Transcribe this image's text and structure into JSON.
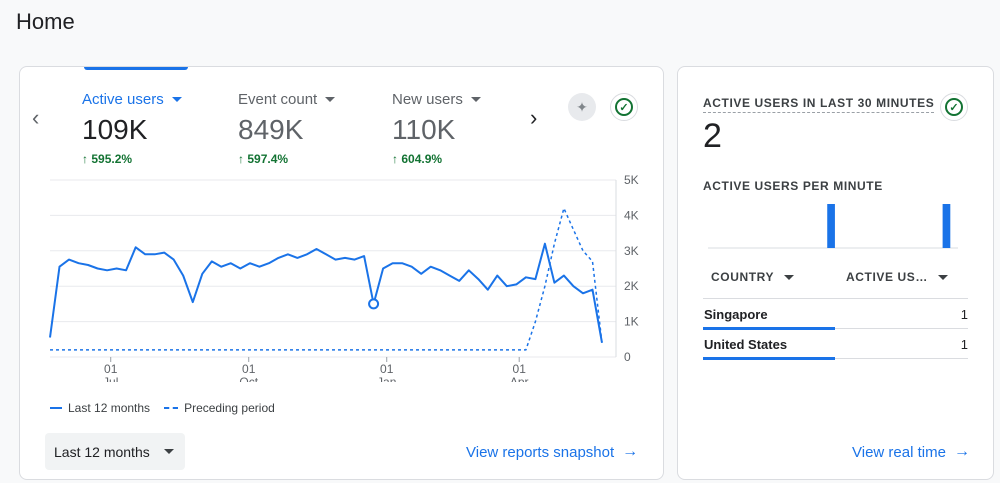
{
  "page": {
    "title": "Home"
  },
  "main_card": {
    "metrics": [
      {
        "label": "Active users",
        "value": "109K",
        "change": "595.2%",
        "active": true
      },
      {
        "label": "Event count",
        "value": "849K",
        "change": "597.4%",
        "active": false
      },
      {
        "label": "New users",
        "value": "110K",
        "change": "604.9%",
        "active": false
      }
    ],
    "change_prefix": "↑",
    "legend": {
      "current": "Last 12 months",
      "previous": "Preceding period"
    },
    "date_range": "Last 12 months",
    "link": "View reports snapshot",
    "colors": {
      "accent": "#1a73e8",
      "positive": "#137333"
    }
  },
  "chart_data": {
    "type": "line",
    "x_ticks": [
      {
        "day": "01",
        "month": "Jul",
        "pos": 0.11
      },
      {
        "day": "01",
        "month": "Oct",
        "pos": 0.36
      },
      {
        "day": "01",
        "month": "Jan",
        "pos": 0.61
      },
      {
        "day": "01",
        "month": "Apr",
        "pos": 0.85
      }
    ],
    "y_ticks": [
      "0",
      "1K",
      "2K",
      "3K",
      "4K",
      "5K"
    ],
    "ylim": [
      0,
      5000
    ],
    "series": [
      {
        "name": "Last 12 months",
        "style": "solid",
        "values": [
          550,
          2550,
          2750,
          2650,
          2600,
          2500,
          2450,
          2500,
          2450,
          3100,
          2900,
          2900,
          2950,
          2750,
          2300,
          1550,
          2350,
          2700,
          2550,
          2650,
          2500,
          2650,
          2550,
          2650,
          2800,
          2900,
          2800,
          2900,
          3050,
          2900,
          2750,
          2800,
          2750,
          2850,
          1500,
          2500,
          2650,
          2650,
          2550,
          2350,
          2550,
          2450,
          2300,
          2150,
          2450,
          2200,
          1900,
          2300,
          2000,
          2050,
          2250,
          2200,
          3200,
          2100,
          2300,
          2000,
          1800,
          1900,
          400
        ]
      },
      {
        "name": "Preceding period",
        "style": "dashed",
        "values": [
          200,
          200,
          200,
          200,
          200,
          200,
          200,
          200,
          200,
          200,
          200,
          200,
          200,
          200,
          200,
          200,
          200,
          200,
          200,
          200,
          200,
          200,
          200,
          200,
          200,
          200,
          200,
          200,
          200,
          200,
          200,
          200,
          200,
          200,
          200,
          200,
          200,
          200,
          200,
          200,
          200,
          200,
          200,
          200,
          200,
          200,
          200,
          200,
          200,
          200,
          200,
          1000,
          2000,
          3200,
          4200,
          3600,
          3000,
          2700,
          400
        ]
      }
    ],
    "highlight_index": 34
  },
  "side_card": {
    "title": "ACTIVE USERS IN LAST 30 MINUTES",
    "value": "2",
    "subtitle": "ACTIVE USERS PER MINUTE",
    "per_minute": [
      0,
      0,
      0,
      0,
      0,
      0,
      0,
      0,
      0,
      0,
      0,
      0,
      0,
      0,
      0,
      0,
      0,
      0,
      0,
      0,
      0,
      0,
      0,
      0,
      0,
      0,
      0,
      0,
      0,
      0,
      0,
      1,
      0,
      0,
      0,
      0,
      0,
      0,
      0,
      0,
      0,
      0,
      0,
      0,
      0,
      0,
      0,
      0,
      0,
      0,
      0,
      0,
      0,
      0,
      0,
      0,
      0,
      0,
      0,
      0,
      0,
      1,
      0,
      0,
      0
    ],
    "table": {
      "headers": [
        "COUNTRY",
        "ACTIVE US…"
      ],
      "rows": [
        {
          "country": "Singapore",
          "value": "1"
        },
        {
          "country": "United States",
          "value": "1"
        }
      ]
    },
    "link": "View real time"
  }
}
